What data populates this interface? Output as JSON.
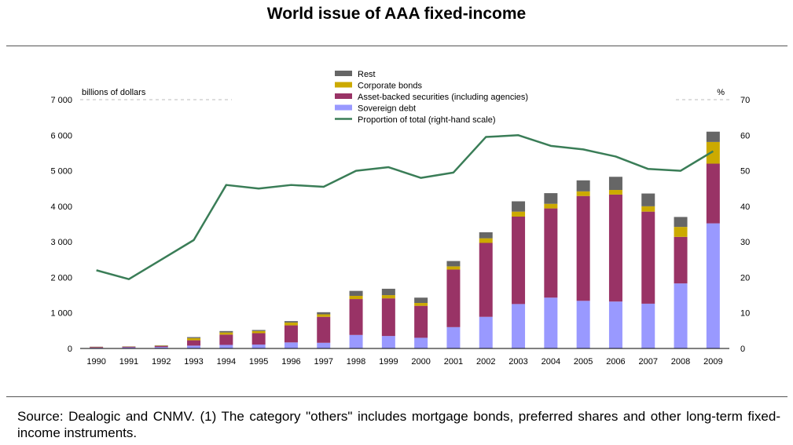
{
  "title": "World issue of AAA fixed-income",
  "source": "Source: Dealogic and CNMV. (1) The category \"others\" includes mortgage bonds, preferred shares and other long-term fixed-income instruments.",
  "colors": {
    "sovereign": "#9999ff",
    "abs": "#993366",
    "corporate": "#ccaa00",
    "rest": "#666666",
    "line": "#3a7d57"
  },
  "chart_data": {
    "type": "bar",
    "stacked": true,
    "left_axis_label": "billions of dollars",
    "right_axis_label": "%",
    "ylim_left": [
      0,
      7000
    ],
    "ylim_right": [
      0,
      70
    ],
    "left_ticks": [
      "0",
      "1 000",
      "2 000",
      "3 000",
      "4 000",
      "5 000",
      "6 000",
      "7 000"
    ],
    "right_ticks": [
      "0",
      "10",
      "20",
      "30",
      "40",
      "50",
      "60",
      "70"
    ],
    "categories": [
      "1990",
      "1991",
      "1992",
      "1993",
      "1994",
      "1995",
      "1996",
      "1997",
      "1998",
      "1999",
      "2000",
      "2001",
      "2002",
      "2003",
      "2004",
      "2005",
      "2006",
      "2007",
      "2008",
      "2009"
    ],
    "series": [
      {
        "name": "Sovereign debt",
        "key": "sovereign",
        "values": [
          20,
          30,
          40,
          80,
          100,
          110,
          170,
          160,
          380,
          350,
          300,
          600,
          890,
          1250,
          1430,
          1340,
          1320,
          1260,
          1830,
          3520
        ]
      },
      {
        "name": "Asset-backed securities (including agencies)",
        "key": "abs",
        "values": [
          20,
          20,
          30,
          150,
          290,
          320,
          480,
          730,
          1010,
          1060,
          900,
          1620,
          2080,
          2460,
          2510,
          2950,
          3010,
          2590,
          1310,
          1680
        ]
      },
      {
        "name": "Corporate bonds",
        "key": "corporate",
        "values": [
          5,
          5,
          10,
          60,
          60,
          60,
          80,
          70,
          90,
          90,
          80,
          90,
          130,
          140,
          130,
          130,
          130,
          150,
          280,
          610
        ]
      },
      {
        "name": "Rest",
        "key": "rest",
        "values": [
          5,
          5,
          10,
          30,
          40,
          30,
          40,
          60,
          140,
          180,
          150,
          150,
          170,
          290,
          300,
          310,
          370,
          360,
          280,
          290
        ]
      }
    ],
    "line": {
      "name": "Proportion of total (right-hand scale)",
      "values": [
        22,
        19.5,
        25,
        30.5,
        46,
        45,
        46,
        45.5,
        50,
        51,
        48,
        49.5,
        59.5,
        60,
        57,
        56,
        54,
        50.5,
        50,
        55.5
      ]
    },
    "legend_order": [
      "Rest",
      "Corporate bonds",
      "Asset-backed securities (including agencies)",
      "Sovereign debt",
      "Proportion of total (right-hand scale)"
    ],
    "legend_position": "top-center"
  }
}
